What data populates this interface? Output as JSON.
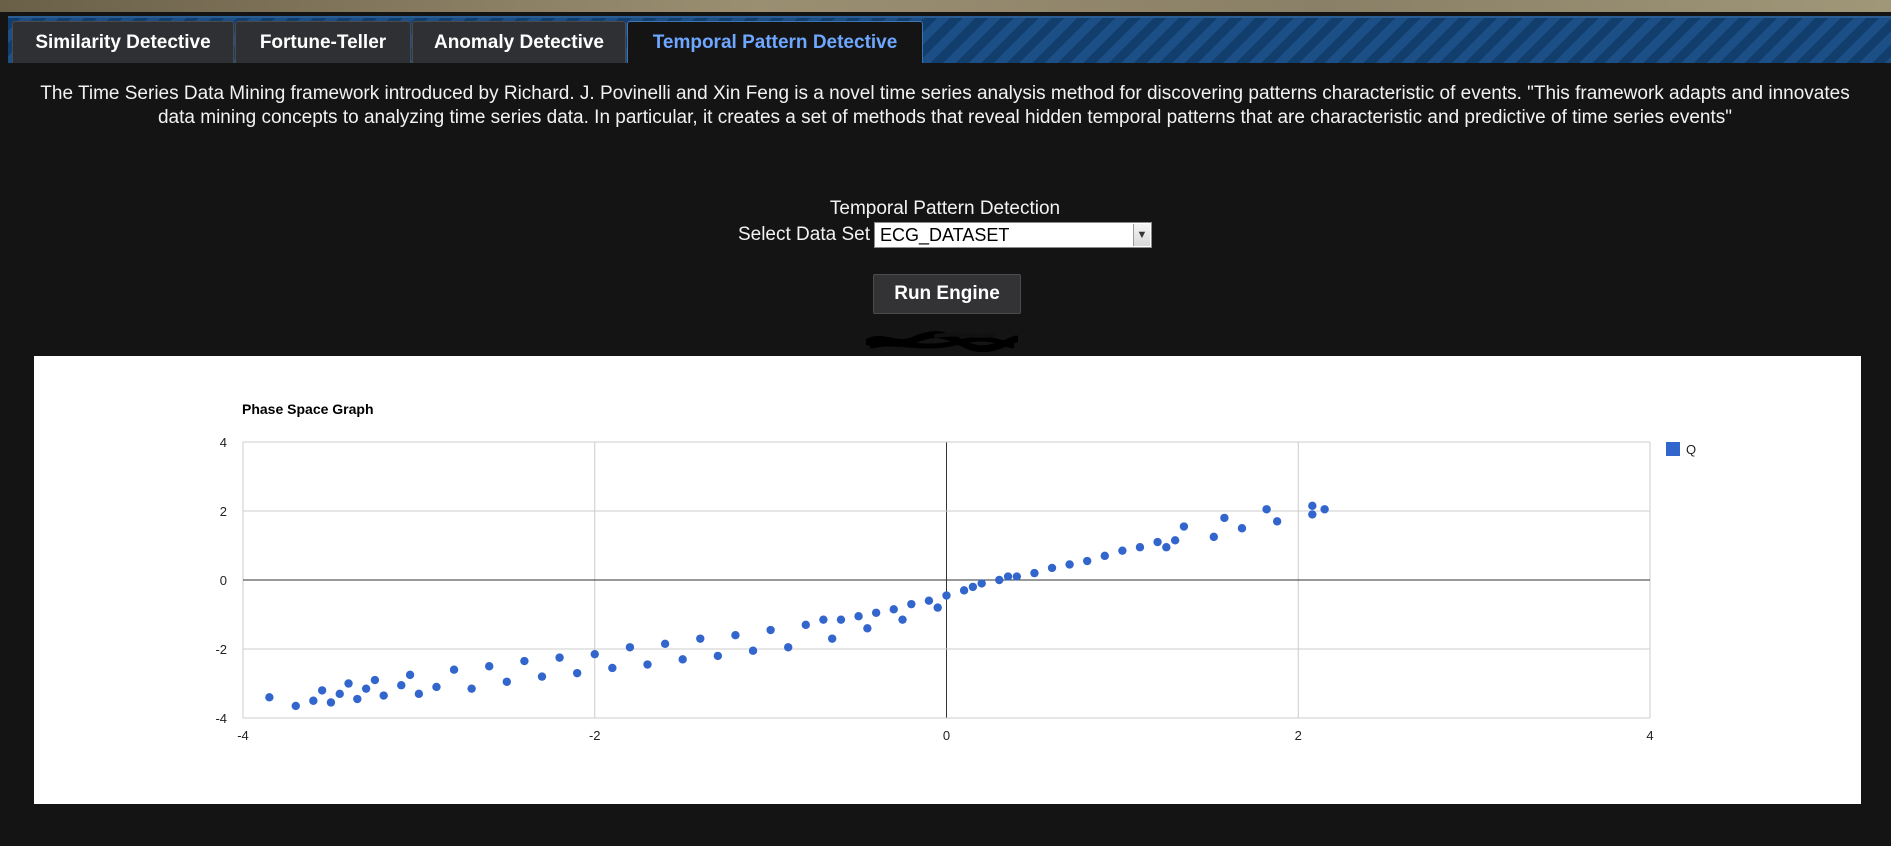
{
  "tabs": [
    {
      "label": "Similarity Detective",
      "active": false
    },
    {
      "label": "Fortune-Teller",
      "active": false
    },
    {
      "label": "Anomaly Detective",
      "active": false
    },
    {
      "label": "Temporal Pattern Detective",
      "active": true
    }
  ],
  "description": "The Time Series Data Mining framework introduced by Richard. J. Povinelli and Xin Feng is a novel time series analysis method for discovering patterns characteristic of events. \"This framework adapts and innovates data mining concepts to analyzing time series data. In particular, it creates a set of methods that reveal hidden temporal patterns that are characteristic and predictive of time series events\"",
  "form": {
    "section_title": "Temporal Pattern Detection",
    "select_label": "Select Data Set",
    "selected_dataset": "ECG_DATASET",
    "run_button_label": "Run Engine"
  },
  "colors": {
    "accent": "#6ea7ff",
    "tabbar": "#1b4f86",
    "series": "#3366cc"
  },
  "chart_data": {
    "type": "scatter",
    "title": "Phase Space Graph",
    "xlim": [
      -4,
      4
    ],
    "ylim": [
      -4,
      4
    ],
    "x_ticks": [
      "-4",
      "-2",
      "0",
      "2",
      "4"
    ],
    "y_ticks": [
      "4",
      "2",
      "0",
      "-2",
      "-4"
    ],
    "grid": true,
    "legend_position": "right",
    "series": [
      {
        "name": "Q",
        "points": [
          [
            -3.85,
            -3.4
          ],
          [
            -3.7,
            -3.65
          ],
          [
            -3.6,
            -3.5
          ],
          [
            -3.55,
            -3.2
          ],
          [
            -3.5,
            -3.55
          ],
          [
            -3.45,
            -3.3
          ],
          [
            -3.4,
            -3.0
          ],
          [
            -3.35,
            -3.45
          ],
          [
            -3.3,
            -3.15
          ],
          [
            -3.25,
            -2.9
          ],
          [
            -3.2,
            -3.35
          ],
          [
            -3.1,
            -3.05
          ],
          [
            -3.05,
            -2.75
          ],
          [
            -3.0,
            -3.3
          ],
          [
            -2.9,
            -3.1
          ],
          [
            -2.8,
            -2.6
          ],
          [
            -2.7,
            -3.15
          ],
          [
            -2.6,
            -2.5
          ],
          [
            -2.5,
            -2.95
          ],
          [
            -2.4,
            -2.35
          ],
          [
            -2.3,
            -2.8
          ],
          [
            -2.2,
            -2.25
          ],
          [
            -2.1,
            -2.7
          ],
          [
            -2.0,
            -2.15
          ],
          [
            -1.9,
            -2.55
          ],
          [
            -1.8,
            -1.95
          ],
          [
            -1.7,
            -2.45
          ],
          [
            -1.6,
            -1.85
          ],
          [
            -1.5,
            -2.3
          ],
          [
            -1.4,
            -1.7
          ],
          [
            -1.3,
            -2.2
          ],
          [
            -1.2,
            -1.6
          ],
          [
            -1.1,
            -2.05
          ],
          [
            -1.0,
            -1.45
          ],
          [
            -0.9,
            -1.95
          ],
          [
            -0.8,
            -1.3
          ],
          [
            -0.7,
            -1.15
          ],
          [
            -0.65,
            -1.7
          ],
          [
            -0.6,
            -1.15
          ],
          [
            -0.5,
            -1.05
          ],
          [
            -0.45,
            -1.4
          ],
          [
            -0.4,
            -0.95
          ],
          [
            -0.3,
            -0.85
          ],
          [
            -0.25,
            -1.15
          ],
          [
            -0.2,
            -0.7
          ],
          [
            -0.1,
            -0.6
          ],
          [
            -0.05,
            -0.8
          ],
          [
            0.0,
            -0.45
          ],
          [
            0.1,
            -0.3
          ],
          [
            0.15,
            -0.2
          ],
          [
            0.2,
            -0.1
          ],
          [
            0.3,
            0.0
          ],
          [
            0.35,
            0.1
          ],
          [
            0.4,
            0.1
          ],
          [
            0.5,
            0.2
          ],
          [
            0.6,
            0.35
          ],
          [
            0.7,
            0.45
          ],
          [
            0.8,
            0.55
          ],
          [
            0.9,
            0.7
          ],
          [
            1.0,
            0.85
          ],
          [
            1.1,
            0.95
          ],
          [
            1.2,
            1.1
          ],
          [
            1.25,
            0.95
          ],
          [
            1.3,
            1.15
          ],
          [
            1.35,
            1.55
          ],
          [
            1.52,
            1.25
          ],
          [
            1.58,
            1.8
          ],
          [
            1.68,
            1.5
          ],
          [
            1.82,
            2.05
          ],
          [
            1.88,
            1.7
          ],
          [
            2.08,
            2.15
          ],
          [
            2.08,
            1.9
          ],
          [
            2.15,
            2.05
          ]
        ]
      }
    ]
  }
}
